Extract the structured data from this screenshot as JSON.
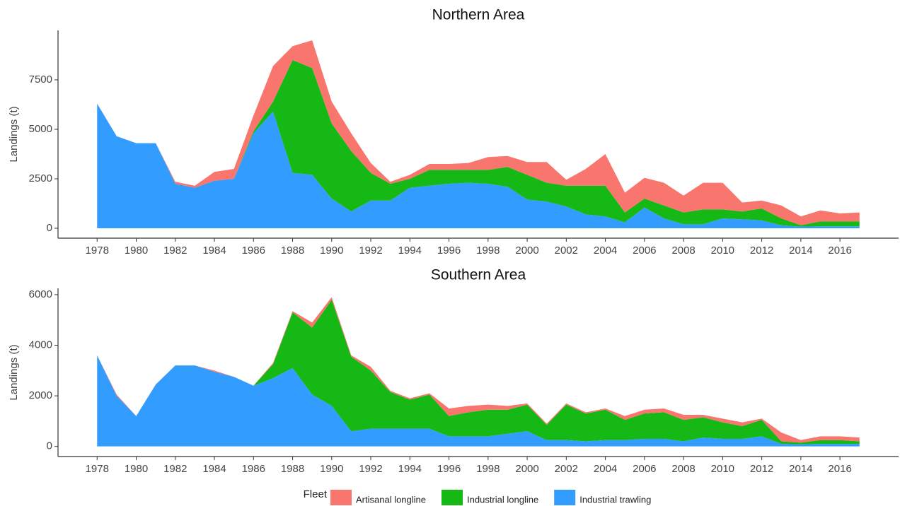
{
  "legend": {
    "title": "Fleet"
  },
  "chart_data": [
    {
      "type": "area",
      "stacked": true,
      "title": "Northern Area",
      "y_label": "Landings (t)",
      "x": [
        1978,
        1979,
        1980,
        1981,
        1982,
        1983,
        1984,
        1985,
        1986,
        1987,
        1988,
        1989,
        1990,
        1991,
        1992,
        1993,
        1994,
        1995,
        1996,
        1997,
        1998,
        1999,
        2000,
        2001,
        2002,
        2003,
        2004,
        2005,
        2006,
        2007,
        2008,
        2009,
        2010,
        2011,
        2012,
        2013,
        2014,
        2015,
        2016,
        2017
      ],
      "xlim": [
        1976,
        2019
      ],
      "xticks": [
        1978,
        1980,
        1982,
        1984,
        1986,
        1988,
        1990,
        1992,
        1994,
        1996,
        1998,
        2000,
        2002,
        2004,
        2006,
        2008,
        2010,
        2012,
        2014,
        2016
      ],
      "ylim": [
        -500,
        10000
      ],
      "yticks": [
        0,
        2500,
        5000,
        7500
      ],
      "series": [
        {
          "name": "Artisanal longline",
          "color": "#f8766d",
          "values": [
            0,
            0,
            0,
            0,
            100,
            100,
            450,
            500,
            800,
            1800,
            700,
            1400,
            1100,
            900,
            500,
            100,
            200,
            300,
            300,
            350,
            650,
            550,
            650,
            1050,
            300,
            850,
            1600,
            1000,
            1050,
            1150,
            850,
            1350,
            1350,
            450,
            400,
            650,
            450,
            550,
            400,
            450
          ]
        },
        {
          "name": "Industrial longline",
          "color": "#16b816",
          "values": [
            0,
            0,
            0,
            0,
            0,
            0,
            0,
            0,
            100,
            500,
            5700,
            5400,
            3800,
            3050,
            1400,
            850,
            450,
            800,
            700,
            650,
            700,
            1000,
            1250,
            950,
            1050,
            1450,
            1550,
            500,
            450,
            650,
            600,
            750,
            450,
            400,
            600,
            350,
            70,
            250,
            250,
            250
          ]
        },
        {
          "name": "Industrial trawling",
          "color": "#339cff",
          "values": [
            6300,
            4650,
            4300,
            4300,
            2250,
            2050,
            2400,
            2500,
            4800,
            5900,
            2800,
            2700,
            1500,
            850,
            1400,
            1400,
            2050,
            2150,
            2250,
            2300,
            2250,
            2100,
            1450,
            1350,
            1100,
            700,
            600,
            300,
            1050,
            500,
            200,
            200,
            500,
            450,
            400,
            150,
            80,
            100,
            100,
            100
          ]
        }
      ]
    },
    {
      "type": "area",
      "stacked": true,
      "title": "Southern Area",
      "y_label": "Landings (t)",
      "x": [
        1978,
        1979,
        1980,
        1981,
        1982,
        1983,
        1984,
        1985,
        1986,
        1987,
        1988,
        1989,
        1990,
        1991,
        1992,
        1993,
        1994,
        1995,
        1996,
        1997,
        1998,
        1999,
        2000,
        2001,
        2002,
        2003,
        2004,
        2005,
        2006,
        2007,
        2008,
        2009,
        2010,
        2011,
        2012,
        2013,
        2014,
        2015,
        2016,
        2017
      ],
      "xlim": [
        1976,
        2019
      ],
      "xticks": [
        1978,
        1980,
        1982,
        1984,
        1986,
        1988,
        1990,
        1992,
        1994,
        1996,
        1998,
        2000,
        2002,
        2004,
        2006,
        2008,
        2010,
        2012,
        2014,
        2016
      ],
      "ylim": [
        -400,
        6250
      ],
      "yticks": [
        0,
        2000,
        4000,
        6000
      ],
      "series": [
        {
          "color": "#f8766d",
          "values": [
            0,
            50,
            0,
            0,
            0,
            0,
            50,
            0,
            0,
            50,
            50,
            200,
            100,
            50,
            150,
            50,
            50,
            50,
            300,
            250,
            200,
            150,
            50,
            50,
            50,
            50,
            50,
            150,
            150,
            150,
            200,
            100,
            150,
            150,
            50,
            350,
            100,
            150,
            150,
            150
          ]
        },
        {
          "color": "#16b816",
          "values": [
            0,
            0,
            0,
            0,
            0,
            0,
            0,
            0,
            0,
            550,
            2200,
            2650,
            4200,
            2950,
            2300,
            1450,
            1150,
            1350,
            800,
            950,
            1050,
            950,
            1050,
            600,
            1400,
            1100,
            1200,
            800,
            1000,
            1050,
            850,
            800,
            650,
            500,
            650,
            100,
            70,
            150,
            150,
            100
          ]
        },
        {
          "color": "#339cff",
          "values": [
            3600,
            2000,
            1200,
            2450,
            3200,
            3200,
            2950,
            2750,
            2400,
            2700,
            3100,
            2050,
            1600,
            600,
            700,
            700,
            700,
            700,
            400,
            400,
            400,
            500,
            600,
            250,
            250,
            200,
            250,
            250,
            300,
            300,
            200,
            350,
            300,
            300,
            400,
            100,
            80,
            100,
            100,
            100
          ]
        }
      ]
    }
  ]
}
